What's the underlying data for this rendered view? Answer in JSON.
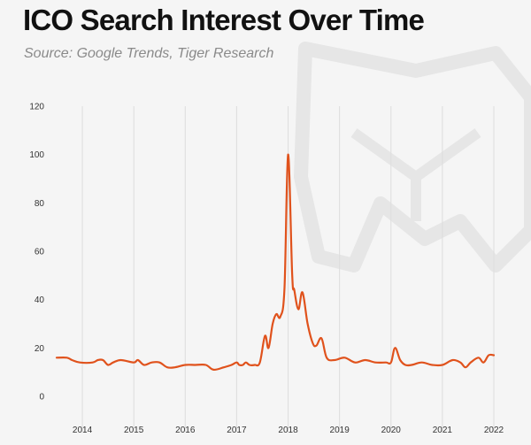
{
  "header": {
    "title": "ICO Search Interest Over Time",
    "subtitle": "Source: Google Trends, Tiger Research"
  },
  "colors": {
    "line": "#e0521c",
    "grid": "#dddddd",
    "background": "#f5f5f5",
    "watermark": "#e6e6e6"
  },
  "chart_data": {
    "type": "line",
    "title": "ICO Search Interest Over Time",
    "subtitle": "Source: Google Trends, Tiger Research",
    "xlabel": "",
    "ylabel": "",
    "ylim": [
      0,
      120
    ],
    "yticks": [
      0,
      20,
      40,
      60,
      80,
      100,
      120
    ],
    "xlim": [
      2013.5,
      2022.0
    ],
    "xticks": [
      2014,
      2015,
      2016,
      2017,
      2018,
      2019,
      2020,
      2021,
      2022
    ],
    "xtick_labels": [
      "2014",
      "2015",
      "2016",
      "2017",
      "2018",
      "2019",
      "2020",
      "2021",
      "2022"
    ],
    "grid": "vertical",
    "legend": "none",
    "series": [
      {
        "x": [
          2013.5,
          2013.7,
          2013.8,
          2013.95,
          2014.2,
          2014.3,
          2014.4,
          2014.5,
          2014.6,
          2014.75,
          2015.0,
          2015.08,
          2015.2,
          2015.35,
          2015.5,
          2015.65,
          2015.8,
          2016.0,
          2016.2,
          2016.4,
          2016.55,
          2016.75,
          2016.9,
          2017.0,
          2017.05,
          2017.12,
          2017.18,
          2017.25,
          2017.35,
          2017.45,
          2017.55,
          2017.62,
          2017.7,
          2017.77,
          2017.85,
          2017.93,
          2018.0,
          2018.08,
          2018.12,
          2018.2,
          2018.28,
          2018.38,
          2018.48,
          2018.55,
          2018.65,
          2018.75,
          2018.9,
          2019.1,
          2019.3,
          2019.5,
          2019.7,
          2019.9,
          2020.0,
          2020.08,
          2020.18,
          2020.28,
          2020.4,
          2020.6,
          2020.8,
          2021.0,
          2021.2,
          2021.35,
          2021.45,
          2021.55,
          2021.7,
          2021.8,
          2021.9,
          2022.0
        ],
        "y": [
          16,
          16,
          15,
          14,
          14,
          15,
          15,
          13,
          14,
          15,
          14,
          15,
          13,
          14,
          14,
          12,
          12,
          13,
          13,
          13,
          11,
          12,
          13,
          14,
          13,
          13,
          14,
          13,
          13,
          14,
          25,
          20,
          30,
          34,
          33,
          45,
          100,
          50,
          44,
          36,
          43,
          30,
          22,
          21,
          24,
          16,
          15,
          16,
          14,
          15,
          14,
          14,
          14,
          20,
          15,
          13,
          13,
          14,
          13,
          13,
          15,
          14,
          12,
          14,
          16,
          14,
          17,
          17
        ]
      }
    ]
  }
}
